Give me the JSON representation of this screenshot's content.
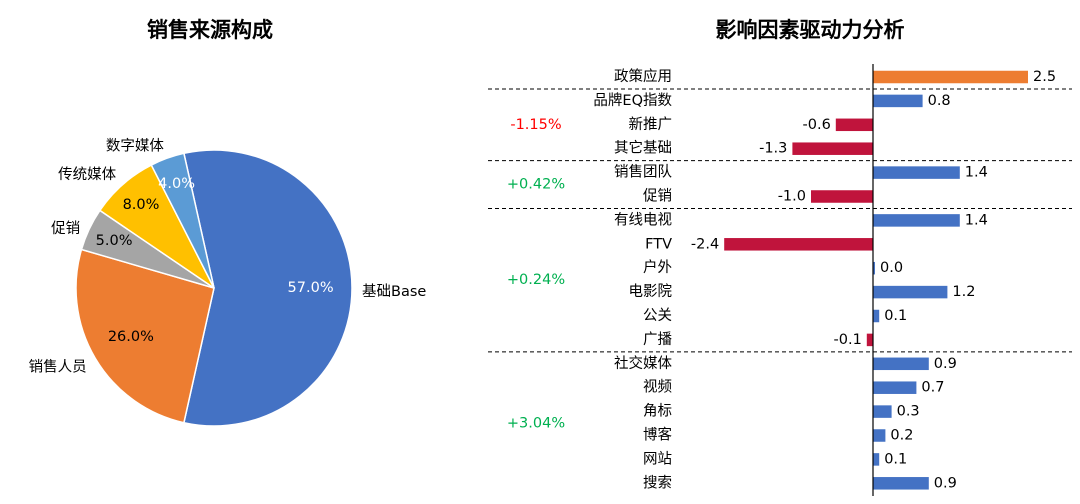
{
  "chart_data": [
    {
      "type": "pie",
      "title": "销售来源构成",
      "slices": [
        {
          "label": "基础Base",
          "value": 57.0,
          "value_text": "57.0%",
          "color": "#4472C4"
        },
        {
          "label": "销售人员",
          "value": 26.0,
          "value_text": "26.0%",
          "color": "#ED7D31"
        },
        {
          "label": "促销",
          "value": 5.0,
          "value_text": "5.0%",
          "color": "#A5A5A5"
        },
        {
          "label": "传统媒体",
          "value": 8.0,
          "value_text": "8.0%",
          "color": "#FFC000"
        },
        {
          "label": "数字媒体",
          "value": 4.0,
          "value_text": "4.0%",
          "color": "#5B9BD5"
        }
      ]
    },
    {
      "type": "bar",
      "orientation": "horizontal",
      "title": "影响因素驱动力分析",
      "colors": {
        "highlight": "#ED7D31",
        "positive": "#4472C4",
        "negative": "#C0143C"
      },
      "groups": [
        {
          "change": "",
          "change_color": "",
          "items": [
            {
              "label": "政策应用",
              "value": 2.5,
              "value_text": "2.5",
              "highlight": true
            }
          ]
        },
        {
          "change": "-1.15%",
          "change_color": "#FF0000",
          "items": [
            {
              "label": "品牌EQ指数",
              "value": 0.8,
              "value_text": "0.8"
            },
            {
              "label": "新推广",
              "value": -0.6,
              "value_text": "-0.6"
            },
            {
              "label": "其它基础",
              "value": -1.3,
              "value_text": "-1.3"
            }
          ]
        },
        {
          "change": "+0.42%",
          "change_color": "#00B050",
          "items": [
            {
              "label": "销售团队",
              "value": 1.4,
              "value_text": "1.4"
            },
            {
              "label": "促销",
              "value": -1.0,
              "value_text": "-1.0"
            }
          ]
        },
        {
          "change": "+0.24%",
          "change_color": "#00B050",
          "items": [
            {
              "label": "有线电视",
              "value": 1.4,
              "value_text": "1.4"
            },
            {
              "label": "FTV",
              "value": -2.4,
              "value_text": "-2.4"
            },
            {
              "label": "户外",
              "value": 0.0,
              "value_text": "0.0"
            },
            {
              "label": "电影院",
              "value": 1.2,
              "value_text": "1.2"
            },
            {
              "label": "公关",
              "value": 0.1,
              "value_text": "0.1"
            },
            {
              "label": "广播",
              "value": -0.1,
              "value_text": "-0.1"
            }
          ]
        },
        {
          "change": "+3.04%",
          "change_color": "#00B050",
          "items": [
            {
              "label": "社交媒体",
              "value": 0.9,
              "value_text": "0.9"
            },
            {
              "label": "视频",
              "value": 0.7,
              "value_text": "0.7"
            },
            {
              "label": "角标",
              "value": 0.3,
              "value_text": "0.3"
            },
            {
              "label": "博客",
              "value": 0.2,
              "value_text": "0.2"
            },
            {
              "label": "网站",
              "value": 0.1,
              "value_text": "0.1"
            },
            {
              "label": "搜索",
              "value": 0.9,
              "value_text": "0.9"
            }
          ]
        }
      ]
    }
  ]
}
